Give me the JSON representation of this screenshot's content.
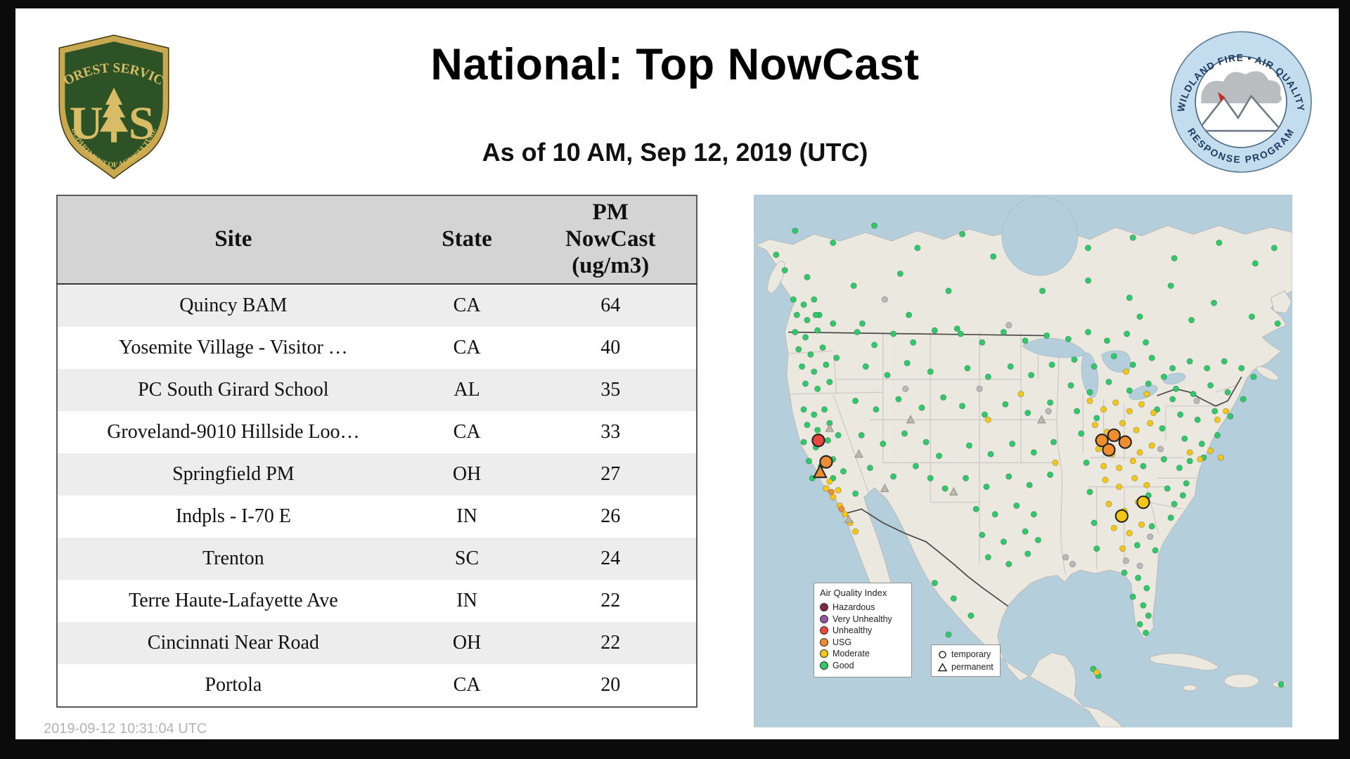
{
  "page": {
    "title": "National: Top NowCast",
    "subtitle": "As of 10 AM, Sep 12, 2019 (UTC)",
    "footer_timestamp": "2019-09-12 10:31:04 UTC"
  },
  "logos": {
    "forest_service": {
      "arc_top": "FOREST SERVICE",
      "arc_bottom": "DEPARTMENT OF AGRICULTURE",
      "monogram_left": "U",
      "monogram_right": "S"
    },
    "wfaqrp": {
      "arc_top": "WILDLAND FIRE • AIR QUALITY",
      "arc_bottom": "RESPONSE PROGRAM"
    }
  },
  "table": {
    "headers": [
      "Site",
      "State",
      "PM\nNowCast\n(ug/m3)"
    ],
    "rows": [
      [
        "Quincy BAM",
        "CA",
        "64"
      ],
      [
        "Yosemite Village - Visitor …",
        "CA",
        "40"
      ],
      [
        "PC South Girard School",
        "AL",
        "35"
      ],
      [
        "Groveland-9010 Hillside Loo…",
        "CA",
        "33"
      ],
      [
        "Springfield PM",
        "OH",
        "27"
      ],
      [
        "Indpls - I-70 E",
        "IN",
        "26"
      ],
      [
        "Trenton",
        "SC",
        "24"
      ],
      [
        "Terre Haute-Lafayette Ave",
        "IN",
        "22"
      ],
      [
        "Cincinnati Near Road",
        "OH",
        "22"
      ],
      [
        "Portola",
        "CA",
        "20"
      ]
    ]
  },
  "map": {
    "colors": {
      "g": "#2fc96b",
      "y": "#f3c717",
      "o": "#ef8d2f",
      "r": "#e9483f",
      "x": "#b9b9b9",
      "t": "#bdb8aa"
    },
    "legend_aqi": {
      "title": "Air Quality Index",
      "items": [
        {
          "label": "Hazardous",
          "color": "#7e2b42"
        },
        {
          "label": "Very Unhealthy",
          "color": "#9356a0"
        },
        {
          "label": "Unhealthy",
          "color": "#e9483f"
        },
        {
          "label": "USG",
          "color": "#ef8d2f"
        },
        {
          "label": "Moderate",
          "color": "#f3c717"
        },
        {
          "label": "Good",
          "color": "#2fc96b"
        }
      ]
    },
    "legend_markers": {
      "items": [
        {
          "label": "temporary",
          "shape": "circle"
        },
        {
          "label": "permanent",
          "shape": "triangle"
        }
      ]
    },
    "points": [
      [
        46,
        122,
        "g"
      ],
      [
        58,
        128,
        "g"
      ],
      [
        70,
        122,
        "g"
      ],
      [
        50,
        140,
        "g"
      ],
      [
        62,
        146,
        "g"
      ],
      [
        76,
        140,
        "g"
      ],
      [
        48,
        160,
        "g"
      ],
      [
        60,
        166,
        "g"
      ],
      [
        74,
        158,
        "g"
      ],
      [
        52,
        180,
        "g"
      ],
      [
        66,
        186,
        "g"
      ],
      [
        80,
        178,
        "g"
      ],
      [
        56,
        200,
        "g"
      ],
      [
        70,
        206,
        "g"
      ],
      [
        84,
        198,
        "g"
      ],
      [
        60,
        220,
        "g"
      ],
      [
        74,
        226,
        "g"
      ],
      [
        88,
        218,
        "g"
      ],
      [
        92,
        150,
        "g"
      ],
      [
        96,
        190,
        "g"
      ],
      [
        58,
        250,
        "g"
      ],
      [
        70,
        256,
        "g"
      ],
      [
        82,
        250,
        "g"
      ],
      [
        62,
        268,
        "g"
      ],
      [
        74,
        274,
        "g"
      ],
      [
        88,
        266,
        "g"
      ],
      [
        58,
        288,
        "g"
      ],
      [
        72,
        294,
        "g"
      ],
      [
        86,
        286,
        "g"
      ],
      [
        98,
        280,
        "g"
      ],
      [
        64,
        310,
        "g"
      ],
      [
        78,
        316,
        "g"
      ],
      [
        92,
        308,
        "g"
      ],
      [
        68,
        330,
        "g"
      ],
      [
        104,
        322,
        "g"
      ],
      [
        92,
        330,
        "g"
      ],
      [
        120,
        160,
        "g"
      ],
      [
        140,
        175,
        "g"
      ],
      [
        162,
        162,
        "g"
      ],
      [
        185,
        172,
        "g"
      ],
      [
        210,
        158,
        "g"
      ],
      [
        130,
        200,
        "g"
      ],
      [
        155,
        210,
        "g"
      ],
      [
        178,
        196,
        "g"
      ],
      [
        205,
        206,
        "g"
      ],
      [
        118,
        240,
        "g"
      ],
      [
        142,
        250,
        "g"
      ],
      [
        168,
        238,
        "g"
      ],
      [
        195,
        248,
        "g"
      ],
      [
        220,
        236,
        "g"
      ],
      [
        125,
        280,
        "g"
      ],
      [
        150,
        290,
        "g"
      ],
      [
        175,
        278,
        "g"
      ],
      [
        200,
        288,
        "g"
      ],
      [
        135,
        318,
        "g"
      ],
      [
        162,
        328,
        "g"
      ],
      [
        188,
        316,
        "g"
      ],
      [
        215,
        304,
        "g"
      ],
      [
        118,
        348,
        "g"
      ],
      [
        222,
        342,
        "g"
      ],
      [
        205,
        330,
        "g"
      ],
      [
        240,
        162,
        "g"
      ],
      [
        265,
        172,
        "g"
      ],
      [
        290,
        160,
        "g"
      ],
      [
        315,
        170,
        "g"
      ],
      [
        340,
        164,
        "g"
      ],
      [
        248,
        202,
        "g"
      ],
      [
        272,
        212,
        "g"
      ],
      [
        298,
        200,
        "g"
      ],
      [
        322,
        210,
        "g"
      ],
      [
        346,
        198,
        "g"
      ],
      [
        242,
        246,
        "g"
      ],
      [
        268,
        256,
        "g"
      ],
      [
        292,
        244,
        "g"
      ],
      [
        318,
        254,
        "g"
      ],
      [
        344,
        242,
        "g"
      ],
      [
        250,
        292,
        "g"
      ],
      [
        275,
        302,
        "g"
      ],
      [
        300,
        290,
        "g"
      ],
      [
        325,
        300,
        "g"
      ],
      [
        348,
        288,
        "g"
      ],
      [
        246,
        330,
        "g"
      ],
      [
        270,
        340,
        "g"
      ],
      [
        296,
        328,
        "g"
      ],
      [
        320,
        338,
        "g"
      ],
      [
        344,
        326,
        "g"
      ],
      [
        258,
        366,
        "g"
      ],
      [
        280,
        372,
        "g"
      ],
      [
        305,
        362,
        "g"
      ],
      [
        325,
        372,
        "g"
      ],
      [
        265,
        396,
        "g"
      ],
      [
        290,
        404,
        "g"
      ],
      [
        315,
        392,
        "g"
      ],
      [
        330,
        402,
        "g"
      ],
      [
        272,
        422,
        "g"
      ],
      [
        296,
        430,
        "g"
      ],
      [
        318,
        418,
        "g"
      ],
      [
        365,
        168,
        "g"
      ],
      [
        388,
        160,
        "g"
      ],
      [
        410,
        170,
        "g"
      ],
      [
        433,
        162,
        "g"
      ],
      [
        455,
        172,
        "g"
      ],
      [
        372,
        192,
        "g"
      ],
      [
        395,
        200,
        "g"
      ],
      [
        418,
        188,
        "g"
      ],
      [
        440,
        198,
        "g"
      ],
      [
        462,
        190,
        "g"
      ],
      [
        368,
        222,
        "g"
      ],
      [
        390,
        230,
        "g"
      ],
      [
        412,
        218,
        "g"
      ],
      [
        436,
        228,
        "g"
      ],
      [
        458,
        220,
        "g"
      ],
      [
        476,
        212,
        "g"
      ],
      [
        375,
        252,
        "g"
      ],
      [
        398,
        260,
        "g"
      ],
      [
        468,
        250,
        "g"
      ],
      [
        380,
        278,
        "g"
      ],
      [
        474,
        272,
        "g"
      ],
      [
        486,
        238,
        "g"
      ],
      [
        486,
        202,
        "g"
      ],
      [
        506,
        194,
        "g"
      ],
      [
        526,
        202,
        "g"
      ],
      [
        546,
        194,
        "g"
      ],
      [
        566,
        202,
        "g"
      ],
      [
        580,
        212,
        "g"
      ],
      [
        490,
        226,
        "g"
      ],
      [
        510,
        232,
        "g"
      ],
      [
        530,
        222,
        "g"
      ],
      [
        550,
        230,
        "g"
      ],
      [
        568,
        238,
        "g"
      ],
      [
        495,
        256,
        "g"
      ],
      [
        515,
        262,
        "g"
      ],
      [
        535,
        252,
        "g"
      ],
      [
        553,
        258,
        "g"
      ],
      [
        500,
        284,
        "g"
      ],
      [
        520,
        290,
        "g"
      ],
      [
        538,
        280,
        "g"
      ],
      [
        506,
        310,
        "g"
      ],
      [
        522,
        306,
        "g"
      ],
      [
        386,
        312,
        "g"
      ],
      [
        452,
        316,
        "g"
      ],
      [
        476,
        308,
        "g"
      ],
      [
        494,
        318,
        "g"
      ],
      [
        390,
        346,
        "g"
      ],
      [
        458,
        350,
        "g"
      ],
      [
        480,
        342,
        "g"
      ],
      [
        498,
        350,
        "g"
      ],
      [
        395,
        382,
        "g"
      ],
      [
        462,
        386,
        "g"
      ],
      [
        484,
        376,
        "g"
      ],
      [
        398,
        412,
        "g"
      ],
      [
        445,
        408,
        "g"
      ],
      [
        466,
        414,
        "g"
      ],
      [
        502,
        336,
        "g"
      ],
      [
        488,
        360,
        "g"
      ],
      [
        430,
        440,
        "g"
      ],
      [
        446,
        446,
        "g"
      ],
      [
        456,
        458,
        "g"
      ],
      [
        440,
        468,
        "g"
      ],
      [
        452,
        478,
        "g"
      ],
      [
        458,
        490,
        "g"
      ],
      [
        448,
        500,
        "g"
      ],
      [
        455,
        510,
        "g"
      ],
      [
        48,
        42,
        "g"
      ],
      [
        92,
        56,
        "g"
      ],
      [
        140,
        36,
        "g"
      ],
      [
        190,
        62,
        "g"
      ],
      [
        242,
        46,
        "g"
      ],
      [
        278,
        72,
        "g"
      ],
      [
        388,
        62,
        "g"
      ],
      [
        440,
        50,
        "g"
      ],
      [
        488,
        74,
        "g"
      ],
      [
        540,
        56,
        "g"
      ],
      [
        582,
        80,
        "g"
      ],
      [
        62,
        96,
        "g"
      ],
      [
        116,
        106,
        "g"
      ],
      [
        170,
        92,
        "g"
      ],
      [
        226,
        112,
        "g"
      ],
      [
        335,
        112,
        "g"
      ],
      [
        388,
        100,
        "g"
      ],
      [
        436,
        120,
        "g"
      ],
      [
        484,
        106,
        "g"
      ],
      [
        534,
        126,
        "g"
      ],
      [
        578,
        142,
        "g"
      ],
      [
        72,
        140,
        "g"
      ],
      [
        126,
        150,
        "g"
      ],
      [
        180,
        140,
        "g"
      ],
      [
        236,
        156,
        "g"
      ],
      [
        604,
        62,
        "g"
      ],
      [
        608,
        150,
        "g"
      ],
      [
        26,
        70,
        "g"
      ],
      [
        448,
        142,
        "g"
      ],
      [
        508,
        146,
        "g"
      ],
      [
        36,
        88,
        "g"
      ],
      [
        210,
        452,
        "g"
      ],
      [
        232,
        470,
        "g"
      ],
      [
        252,
        490,
        "g"
      ],
      [
        226,
        512,
        "g"
      ],
      [
        394,
        552,
        "g"
      ],
      [
        400,
        560,
        "g"
      ],
      [
        612,
        570,
        "g"
      ],
      [
        390,
        240,
        "y"
      ],
      [
        406,
        250,
        "y"
      ],
      [
        420,
        242,
        "y"
      ],
      [
        436,
        252,
        "y"
      ],
      [
        450,
        244,
        "y"
      ],
      [
        464,
        254,
        "y"
      ],
      [
        396,
        268,
        "y"
      ],
      [
        410,
        276,
        "y"
      ],
      [
        428,
        266,
        "y"
      ],
      [
        444,
        274,
        "y"
      ],
      [
        460,
        266,
        "y"
      ],
      [
        400,
        296,
        "y"
      ],
      [
        416,
        302,
        "y"
      ],
      [
        432,
        292,
        "y"
      ],
      [
        448,
        300,
        "y"
      ],
      [
        462,
        292,
        "y"
      ],
      [
        406,
        316,
        "y"
      ],
      [
        424,
        318,
        "y"
      ],
      [
        440,
        310,
        "y"
      ],
      [
        408,
        332,
        "y"
      ],
      [
        424,
        340,
        "y"
      ],
      [
        442,
        330,
        "y"
      ],
      [
        456,
        338,
        "y"
      ],
      [
        412,
        360,
        "y"
      ],
      [
        430,
        368,
        "y"
      ],
      [
        446,
        358,
        "y"
      ],
      [
        418,
        388,
        "y"
      ],
      [
        436,
        394,
        "y"
      ],
      [
        450,
        384,
        "y"
      ],
      [
        428,
        412,
        "y"
      ],
      [
        84,
        342,
        "y"
      ],
      [
        92,
        352,
        "y"
      ],
      [
        100,
        362,
        "y"
      ],
      [
        106,
        372,
        "y"
      ],
      [
        112,
        382,
        "y"
      ],
      [
        118,
        392,
        "y"
      ],
      [
        98,
        344,
        "y"
      ],
      [
        88,
        334,
        "y"
      ],
      [
        506,
        300,
        "y"
      ],
      [
        518,
        308,
        "y"
      ],
      [
        530,
        298,
        "y"
      ],
      [
        542,
        306,
        "y"
      ],
      [
        310,
        232,
        "y"
      ],
      [
        350,
        312,
        "y"
      ],
      [
        272,
        262,
        "y"
      ],
      [
        432,
        206,
        "y"
      ],
      [
        456,
        232,
        "y"
      ],
      [
        548,
        252,
        "y"
      ],
      [
        538,
        262,
        "y"
      ],
      [
        398,
        556,
        "y"
      ],
      [
        90,
        346,
        "o"
      ],
      [
        102,
        366,
        "o"
      ],
      [
        176,
        226,
        "x"
      ],
      [
        262,
        226,
        "x"
      ],
      [
        342,
        252,
        "x"
      ],
      [
        514,
        240,
        "x"
      ],
      [
        472,
        296,
        "x"
      ],
      [
        432,
        426,
        "x"
      ],
      [
        448,
        432,
        "x"
      ],
      [
        296,
        152,
        "x"
      ],
      [
        152,
        122,
        "x"
      ],
      [
        362,
        422,
        "x"
      ],
      [
        370,
        430,
        "x"
      ],
      [
        460,
        398,
        "x"
      ],
      [
        88,
        272,
        "t"
      ],
      [
        122,
        302,
        "t"
      ],
      [
        152,
        342,
        "t"
      ],
      [
        232,
        346,
        "t"
      ],
      [
        334,
        262,
        "t"
      ],
      [
        182,
        262,
        "t"
      ],
      [
        110,
        378,
        "t"
      ],
      [
        75,
        286,
        "R"
      ],
      [
        84,
        311,
        "O"
      ],
      [
        77,
        323,
        "T"
      ],
      [
        404,
        286,
        "O"
      ],
      [
        418,
        280,
        "O"
      ],
      [
        431,
        288,
        "O"
      ],
      [
        412,
        297,
        "O"
      ],
      [
        452,
        358,
        "Y"
      ],
      [
        427,
        374,
        "Y"
      ]
    ]
  }
}
